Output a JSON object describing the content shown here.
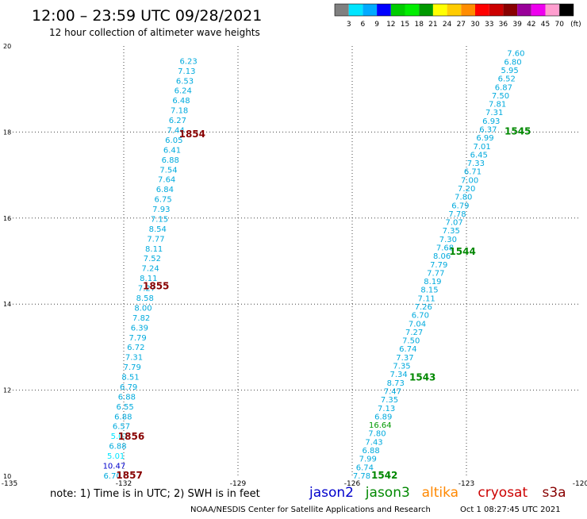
{
  "header": {
    "title": "12:00 – 23:59 UTC 09/28/2021",
    "subtitle": "12 hour collection of altimeter wave heights",
    "unit": "(ft)"
  },
  "legend_scale": {
    "ticks": [
      "3",
      "6",
      "9",
      "12",
      "15",
      "18",
      "21",
      "24",
      "27",
      "30",
      "33",
      "36",
      "39",
      "42",
      "45",
      "70"
    ],
    "colors": [
      "#808080",
      "#00e5ff",
      "#00aaff",
      "#0000ff",
      "#00cc00",
      "#00ee00",
      "#009900",
      "#ffff00",
      "#ffcc00",
      "#ff8c00",
      "#ff0000",
      "#cc0000",
      "#880000",
      "#990099",
      "#ee00ee",
      "#ff9ecf",
      "#000000"
    ]
  },
  "footer": {
    "note": "note:  1) Time is in UTC;  2) SWH is in feet",
    "satellites": [
      {
        "name": "jason2",
        "color": "#0000cc"
      },
      {
        "name": "jason3",
        "color": "#008800"
      },
      {
        "name": "altika",
        "color": "#ff8800"
      },
      {
        "name": "cryosat",
        "color": "#cc0000"
      },
      {
        "name": "s3a",
        "color": "#880000"
      }
    ],
    "credit": "NOAA/NESDIS Center for Satellite Applications and Research",
    "timestamp": "Oct  1 08:27:45 UTC 2021"
  },
  "chart_data": {
    "type": "scatter",
    "xlim": [
      -135,
      -120
    ],
    "ylim": [
      10,
      20
    ],
    "x_ticks": [
      {
        "v": -135,
        "label": "-135"
      },
      {
        "v": -132,
        "label": "-132"
      },
      {
        "v": -129,
        "label": "-129"
      },
      {
        "v": -126,
        "label": "-126"
      },
      {
        "v": -123,
        "label": "-123"
      },
      {
        "v": -120,
        "label": "-120"
      }
    ],
    "y_ticks": [
      {
        "v": 10,
        "label": "10"
      },
      {
        "v": 12,
        "label": "12"
      },
      {
        "v": 14,
        "label": "14"
      },
      {
        "v": 16,
        "label": "16"
      },
      {
        "v": 18,
        "label": "18"
      },
      {
        "v": 20,
        "label": "20"
      }
    ],
    "grid": true,
    "tracks": [
      {
        "start": {
          "lon": -130.3,
          "lat": 19.66
        },
        "end": {
          "lon": -132.3,
          "lat": 10.02
        },
        "color": "#00aadd",
        "values": [
          "6.23",
          "7.13",
          "6.53",
          "6.24",
          "6.48",
          "7.18",
          "6.27",
          "7.44",
          "6.05",
          "6.41",
          "6.88",
          "7.54",
          "7.64",
          "6.84",
          "6.75",
          "7.93",
          "7.15",
          "8.54",
          "7.77",
          "8.11",
          "7.52",
          "7.24",
          "8.11",
          "7.27",
          "8.58",
          "8.00",
          "7.82",
          "6.39",
          "7.79",
          "6.72",
          "7.31",
          "7.79",
          "8.51",
          "6.79",
          "6.88",
          "6.55",
          "6.88",
          "6.57",
          "5.01",
          "6.88",
          "5.01",
          "10.47",
          "6.70"
        ],
        "value_colors": {
          "38": "#00e5ff",
          "40": "#00e5ff",
          "41": "#0000cc"
        }
      },
      {
        "start": {
          "lon": -121.7,
          "lat": 19.84
        },
        "end": {
          "lon": -125.75,
          "lat": 10.02
        },
        "color": "#00aadd",
        "values": [
          "7.60",
          "6.80",
          "5.95",
          "6.52",
          "6.87",
          "7.50",
          "7.81",
          "7.31",
          "6.93",
          "6.37",
          "6.99",
          "7.01",
          "6.45",
          "7.33",
          "6.71",
          "7.00",
          "7.20",
          "7.80",
          "6.79",
          "7.78",
          "7.07",
          "7.35",
          "7.30",
          "7.68",
          "8.06",
          "7.79",
          "7.77",
          "8.19",
          "8.15",
          "7.11",
          "7.26",
          "6.70",
          "7.04",
          "7.27",
          "7.50",
          "6.74",
          "7.37",
          "7.35",
          "7.34",
          "8.73",
          "7.47",
          "7.35",
          "7.13",
          "6.89",
          "16.64",
          "7.80",
          "7.43",
          "6.88",
          "7.99",
          "6.74",
          "7.78"
        ],
        "value_colors": {
          "44": "#009900"
        }
      }
    ],
    "time_labels": [
      {
        "text": "1854",
        "lon": -130.55,
        "lat": 17.95,
        "color": "#880000"
      },
      {
        "text": "1855",
        "lon": -131.5,
        "lat": 14.42,
        "color": "#880000"
      },
      {
        "text": "1856",
        "lon": -132.15,
        "lat": 10.92,
        "color": "#880000"
      },
      {
        "text": "1857",
        "lon": -132.2,
        "lat": 10.02,
        "color": "#880000"
      },
      {
        "text": "1545",
        "lon": -122.0,
        "lat": 18.02,
        "color": "#008800"
      },
      {
        "text": "1544",
        "lon": -123.45,
        "lat": 15.22,
        "color": "#008800"
      },
      {
        "text": "1543",
        "lon": -124.5,
        "lat": 12.3,
        "color": "#008800"
      },
      {
        "text": "1542",
        "lon": -125.5,
        "lat": 10.02,
        "color": "#008800"
      }
    ]
  }
}
